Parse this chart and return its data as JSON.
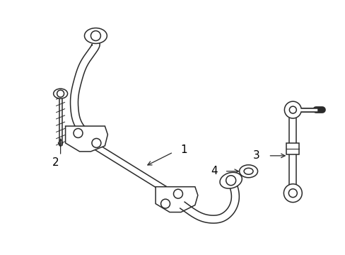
{
  "bg_color": "#ffffff",
  "line_color": "#2a2a2a",
  "label_color": "#000000",
  "lw": 1.1,
  "fig_w": 4.89,
  "fig_h": 3.6,
  "dpi": 100
}
